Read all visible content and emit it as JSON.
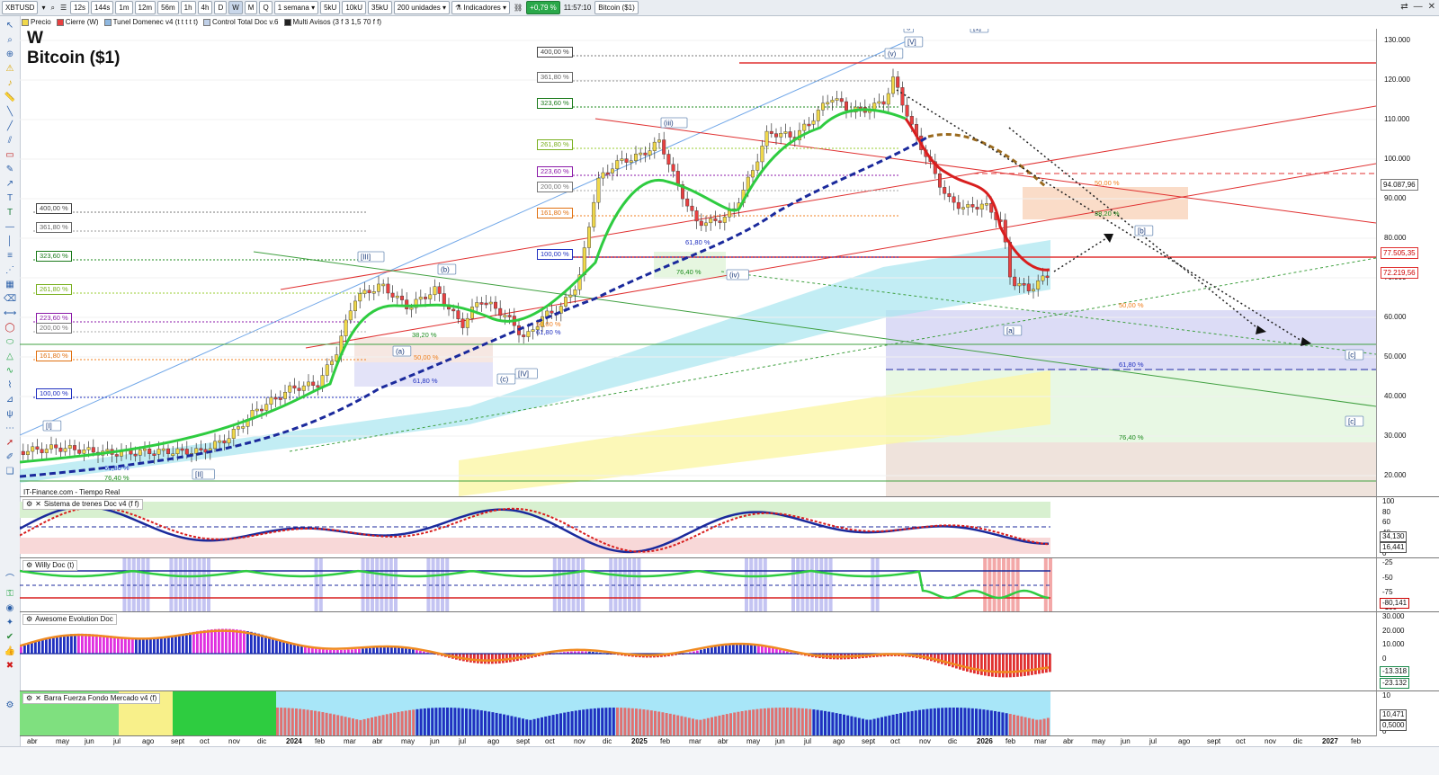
{
  "toolbar": {
    "symbol": "XBTUSD",
    "intervals": [
      "12s",
      "144s",
      "1m",
      "12m",
      "56m",
      "1h",
      "4h",
      "D",
      "W",
      "M",
      "Q"
    ],
    "selected_interval": "W",
    "period": "1 semana",
    "unit_buttons": [
      "5kU",
      "10kU",
      "35kU"
    ],
    "units_select": "200 unidades",
    "indicators_label": "Indicadores",
    "change_pct": "+0,79 %",
    "time": "11:57:10",
    "instrument": "Bitcoin ($1)"
  },
  "legend": {
    "items": [
      "Precio",
      "Cierre (W)",
      "Tunel Domenec v4 (t t t t t)",
      "Control Total Doc v.6",
      "Multi Avisos (3 f 3 1,5 70 f f)"
    ]
  },
  "chart_title": {
    "line1": "W",
    "line2": "Bitcoin ($1)"
  },
  "source": "IT-Finance.com - Tiempo Real",
  "price_axis": {
    "ticks": [
      "130.000",
      "120.000",
      "110.000",
      "100.000",
      "90.000",
      "80.000",
      "70.000",
      "60.000",
      "50.000",
      "40.000",
      "30.000",
      "20.000"
    ],
    "tags": [
      "94.087,96",
      "77.505,35",
      "72.219,56"
    ]
  },
  "time_axis": {
    "ticks": [
      "abr",
      "may",
      "jun",
      "jul",
      "ago",
      "sept",
      "oct",
      "nov",
      "dic",
      "2024",
      "feb",
      "mar",
      "abr",
      "may",
      "jun",
      "jul",
      "ago",
      "sept",
      "oct",
      "nov",
      "dic",
      "2025",
      "feb",
      "mar",
      "abr",
      "may",
      "jun",
      "jul",
      "ago",
      "sept",
      "oct",
      "nov",
      "dic",
      "2026",
      "feb",
      "mar",
      "abr",
      "may",
      "jun",
      "jul",
      "ago",
      "sept",
      "oct",
      "nov",
      "dic",
      "2027",
      "feb"
    ]
  },
  "wave_labels": [
    "[I]",
    "[II]",
    "[III]",
    "[IV]",
    "(a)",
    "(b)",
    "(c)",
    "(iii)",
    "(iv)",
    "(v)",
    "[V]",
    "[1]",
    "5",
    "[a]",
    "[b]",
    "[c]",
    "[c]"
  ],
  "fib_labels_left": [
    "400,00 %",
    "361,80 %",
    "323,60 %",
    "261,80 %",
    "223,60 %",
    "200,00 %",
    "161,80 %",
    "100,00 %"
  ],
  "fib_labels_mid": [
    "400,00 %",
    "361,80 %",
    "323,60 %",
    "261,80 %",
    "223,60 %",
    "200,00 %",
    "161,80 %",
    "100,00 %"
  ],
  "retracement_labels": [
    "38,20 %",
    "50,00 %",
    "61,80 %",
    "61,80 %",
    "76,40 %",
    "50,00 %",
    "61,80 %",
    "76,40 %",
    "50,00 %",
    "61,80 %",
    "76,40 %",
    "61,80 %",
    "50,00 %",
    "38,20 %"
  ],
  "panels": {
    "trenes": {
      "name": "Sistema de trenes Doc v4 (f f)",
      "ticks": [
        "100",
        "80",
        "60",
        "40",
        "20",
        "0"
      ],
      "tags": [
        "34,130",
        "16,441"
      ]
    },
    "willy": {
      "name": "Willy Doc (t)",
      "ticks": [
        "-25",
        "-50",
        "-75",
        "-100"
      ],
      "tags": [
        "-80,141"
      ]
    },
    "awesome": {
      "name": "Awesome Evolution Doc",
      "ticks": [
        "30.000",
        "20.000",
        "10.000",
        "0",
        "-10.000",
        "-20.000"
      ],
      "tags": [
        "-13.318",
        "-23.132"
      ]
    },
    "barra": {
      "name": "Barra Fuerza Fondo Mercado v4 (f)",
      "ticks": [
        "10",
        "5",
        "0"
      ],
      "tags": [
        "10,471",
        "0,5000"
      ]
    }
  },
  "colors": {
    "up": "#f0d84a",
    "down": "#e8433a",
    "bull": "#2ecc40",
    "bear": "#e84040",
    "accent": "#1b3fa8"
  }
}
